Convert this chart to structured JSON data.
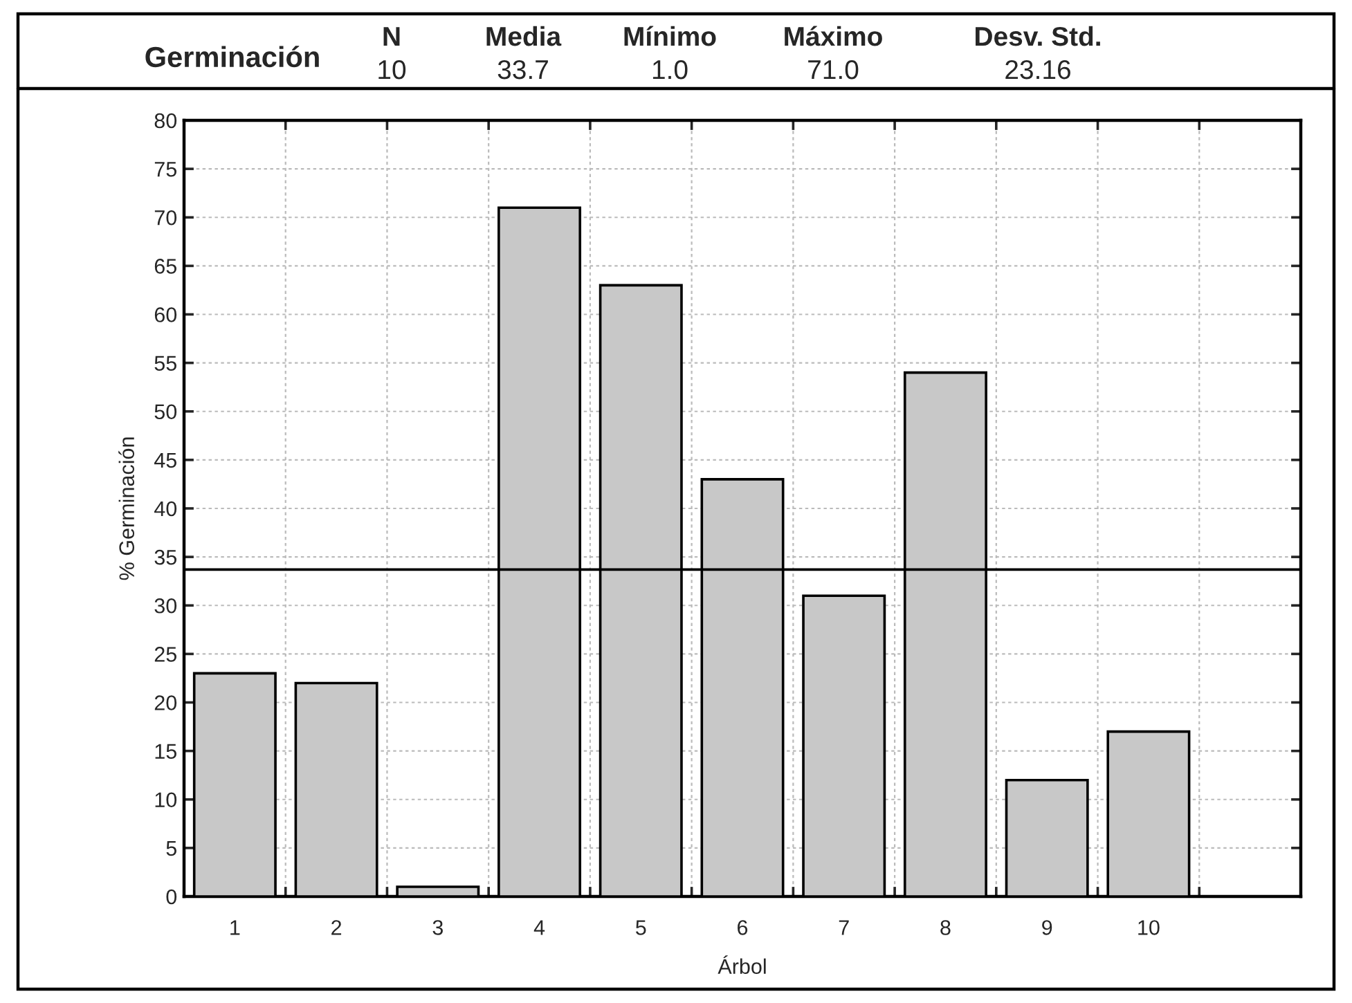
{
  "chart_data": {
    "type": "bar",
    "title": "Germinación",
    "annotations": [
      "N",
      "10",
      "Media",
      "33.7",
      "Mínimo",
      "1.0",
      "Máximo",
      "71.0",
      "Desv. Std.",
      "23.16"
    ],
    "xlabel": "Árbol",
    "ylabel": "% Germinación",
    "categories": [
      "1",
      "2",
      "3",
      "4",
      "5",
      "6",
      "7",
      "8",
      "9",
      "10",
      null
    ],
    "values": [
      23,
      22,
      1,
      71,
      63,
      43,
      31,
      54,
      12,
      17,
      null
    ],
    "color": "#c8c8c8",
    "ylim": [
      0,
      80
    ],
    "yticks": [
      0,
      5,
      10,
      15,
      20,
      25,
      30,
      35,
      40,
      45,
      50,
      55,
      60,
      65,
      70,
      75,
      80
    ],
    "ref_lines": [
      {
        "axis": "y",
        "value": 33.7,
        "color": "#000000"
      }
    ],
    "grid": true
  }
}
